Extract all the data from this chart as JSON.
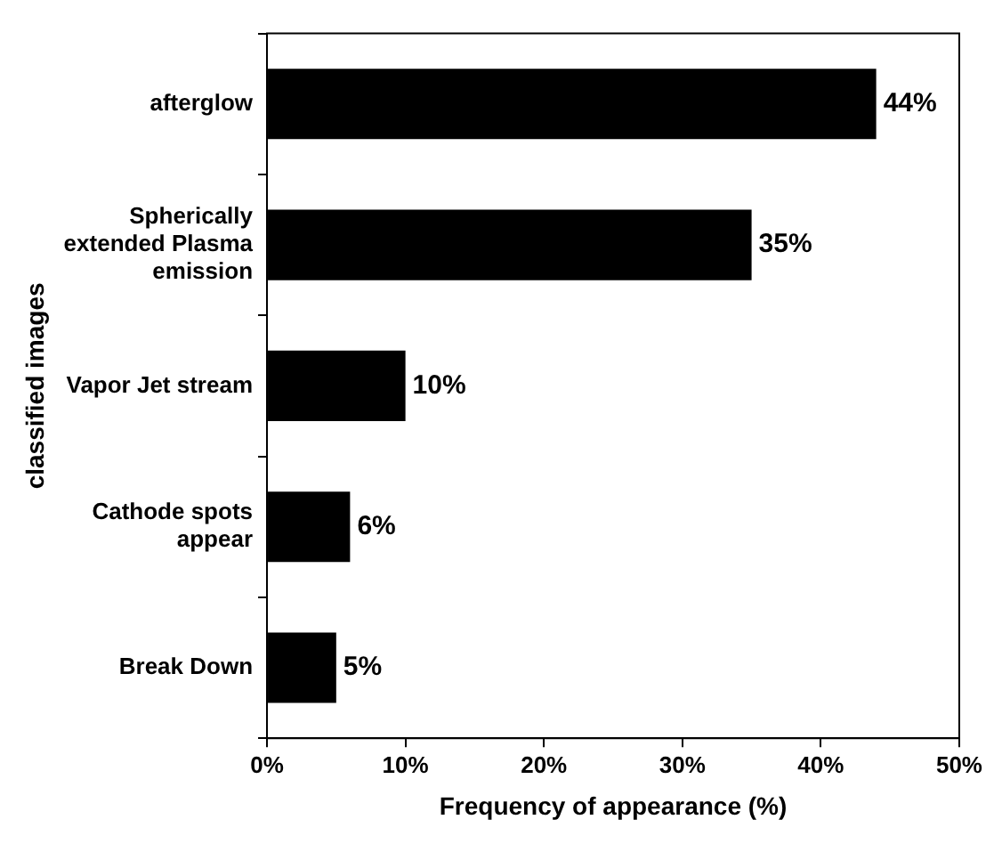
{
  "chart_data": {
    "type": "bar",
    "orientation": "horizontal",
    "xlabel": "Frequency of appearance (%)",
    "ylabel": "classified images",
    "categories": [
      "afterglow",
      "Spherically extended Plasma emission",
      "Vapor Jet stream",
      "Cathode spots appear",
      "Break Down"
    ],
    "values": [
      44,
      35,
      10,
      6,
      5
    ],
    "color": "#000000",
    "value_labels": [
      "44%",
      "35%",
      "10%",
      "6%",
      "5%"
    ],
    "xlim": [
      0,
      50
    ],
    "xticks": [
      {
        "value": 0,
        "label": "0%"
      },
      {
        "value": 10,
        "label": "10%"
      },
      {
        "value": 20,
        "label": "20%"
      },
      {
        "value": 30,
        "label": "30%"
      },
      {
        "value": 40,
        "label": "40%"
      },
      {
        "value": 50,
        "label": "50%"
      }
    ],
    "grid": false,
    "legend": false
  }
}
